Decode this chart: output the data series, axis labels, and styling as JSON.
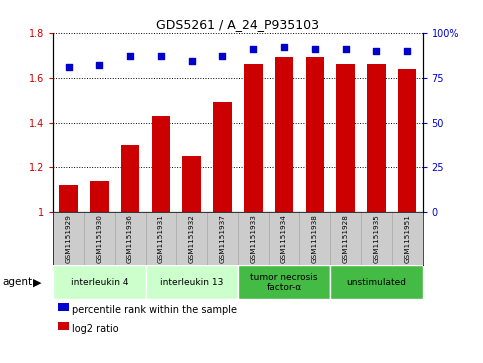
{
  "title": "GDS5261 / A_24_P935103",
  "samples": [
    "GSM1151929",
    "GSM1151930",
    "GSM1151936",
    "GSM1151931",
    "GSM1151932",
    "GSM1151937",
    "GSM1151933",
    "GSM1151934",
    "GSM1151938",
    "GSM1151928",
    "GSM1151935",
    "GSM1151951"
  ],
  "log2_ratio": [
    1.12,
    1.14,
    1.3,
    1.43,
    1.25,
    1.49,
    1.66,
    1.69,
    1.69,
    1.66,
    1.66,
    1.64
  ],
  "percentile_rank": [
    81,
    82,
    87,
    87,
    84,
    87,
    91,
    92,
    91,
    91,
    90,
    90
  ],
  "bar_color": "#CC0000",
  "dot_color": "#0000CC",
  "ylim_left": [
    1.0,
    1.8
  ],
  "ylim_right": [
    0,
    100
  ],
  "yticks_left": [
    1.0,
    1.2,
    1.4,
    1.6,
    1.8
  ],
  "ytick_labels_left": [
    "1",
    "1.2",
    "1.4",
    "1.6",
    "1.8"
  ],
  "yticks_right": [
    0,
    25,
    50,
    75,
    100
  ],
  "ytick_labels_right": [
    "0",
    "25",
    "50",
    "75",
    "100%"
  ],
  "groups": [
    {
      "label": "interleukin 4",
      "start": 0,
      "end": 3,
      "color": "#ccffcc"
    },
    {
      "label": "interleukin 13",
      "start": 3,
      "end": 6,
      "color": "#ccffcc"
    },
    {
      "label": "tumor necrosis\nfactor-α",
      "start": 6,
      "end": 9,
      "color": "#44bb44"
    },
    {
      "label": "unstimulated",
      "start": 9,
      "end": 12,
      "color": "#44bb44"
    }
  ],
  "agent_label": "agent",
  "legend_items": [
    {
      "color": "#CC0000",
      "label": "log2 ratio"
    },
    {
      "color": "#0000CC",
      "label": "percentile rank within the sample"
    }
  ],
  "grid_color": "black",
  "tick_area_color": "#cccccc",
  "bar_width": 0.6
}
